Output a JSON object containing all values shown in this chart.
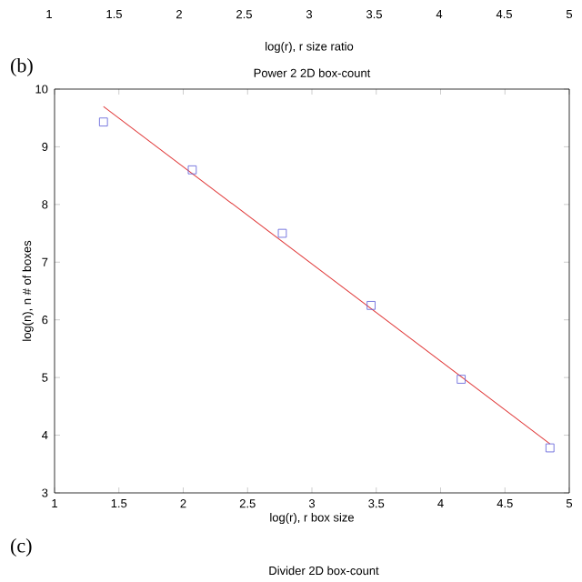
{
  "chart_data": [
    {
      "type": "scatter",
      "title": "Power 2 2D box-count",
      "xlabel": "log(r), r box size",
      "ylabel": "log(n), n # of boxes",
      "x2label": "log(r), r size ratio",
      "xlim": [
        1,
        5
      ],
      "ylim": [
        3,
        10
      ],
      "x2lim": [
        1,
        5
      ],
      "xticks": [
        1,
        1.5,
        2,
        2.5,
        3,
        3.5,
        4,
        4.5,
        5
      ],
      "yticks": [
        3,
        4,
        5,
        6,
        7,
        8,
        9,
        10
      ],
      "x2ticks": [
        1,
        1.5,
        2,
        2.5,
        3,
        3.5,
        4,
        4.5,
        5
      ],
      "annotations": [
        "(b)"
      ],
      "series": [
        {
          "type": "scatter",
          "marker": "square",
          "color": "#5a5ad8",
          "x": [
            1.38,
            2.07,
            2.77,
            3.46,
            4.16,
            4.85
          ],
          "values": [
            9.43,
            8.6,
            7.5,
            6.25,
            4.97,
            3.78
          ]
        },
        {
          "type": "line",
          "marker": "none",
          "color": "#e03838",
          "x": [
            1.38,
            4.85
          ],
          "values": [
            9.7,
            3.85
          ]
        }
      ]
    },
    {
      "type": "other",
      "title": "Divider 2D box-count",
      "annotations": [
        "(c)"
      ]
    }
  ]
}
